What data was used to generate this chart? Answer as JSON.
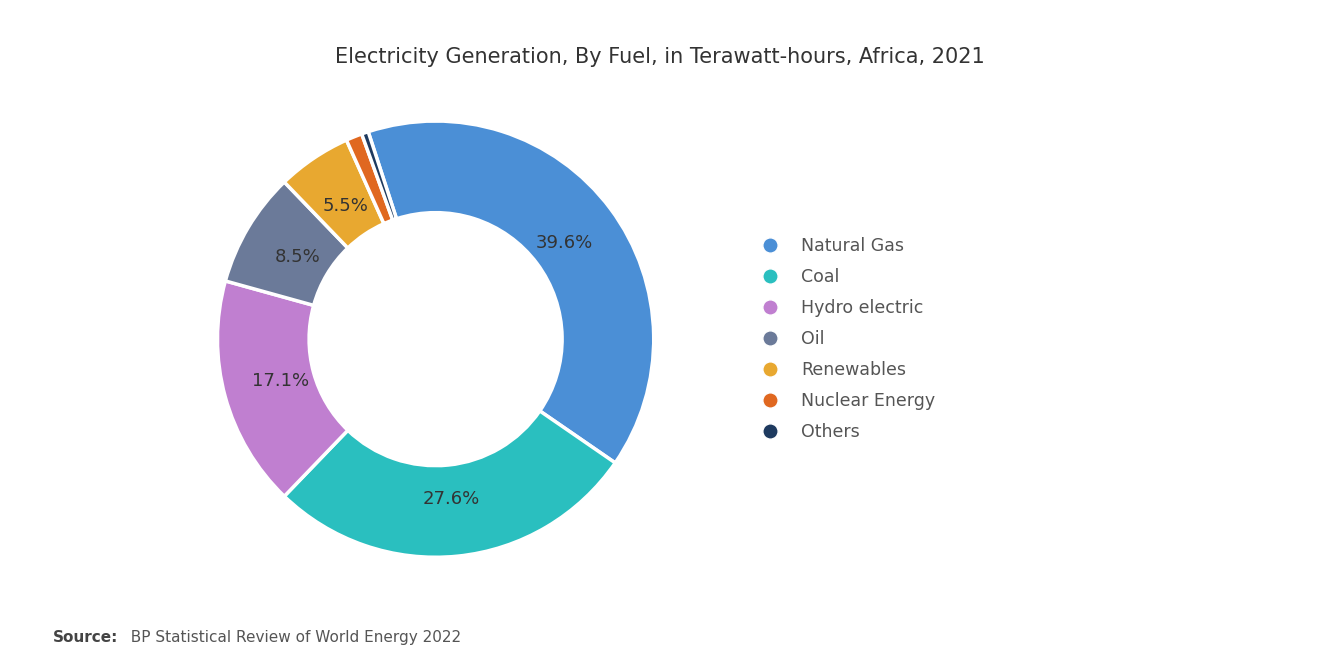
{
  "title": "Electricity Generation, By Fuel, in Terawatt-hours, Africa, 2021",
  "labels": [
    "Natural Gas",
    "Coal",
    "Hydro electric",
    "Oil",
    "Renewables",
    "Nuclear Energy",
    "Others"
  ],
  "values": [
    39.6,
    27.6,
    17.1,
    8.5,
    5.5,
    1.2,
    0.5
  ],
  "colors": [
    "#4B8FD6",
    "#2ABFBF",
    "#C07FD0",
    "#6B7A99",
    "#E8A830",
    "#E06820",
    "#1E3A5F"
  ],
  "background_color": "#FFFFFF",
  "title_fontsize": 15,
  "legend_fontsize": 12.5,
  "pct_fontsize": 13,
  "source_bold": "Source:",
  "source_rest": "  BP Statistical Review of World Energy 2022",
  "start_angle": 108,
  "pct_labels": [
    "39.6%",
    "27.6%",
    "17.1%",
    "8.5%",
    "5.5%",
    "",
    ""
  ],
  "show_pct": [
    true,
    true,
    true,
    true,
    true,
    false,
    false
  ]
}
